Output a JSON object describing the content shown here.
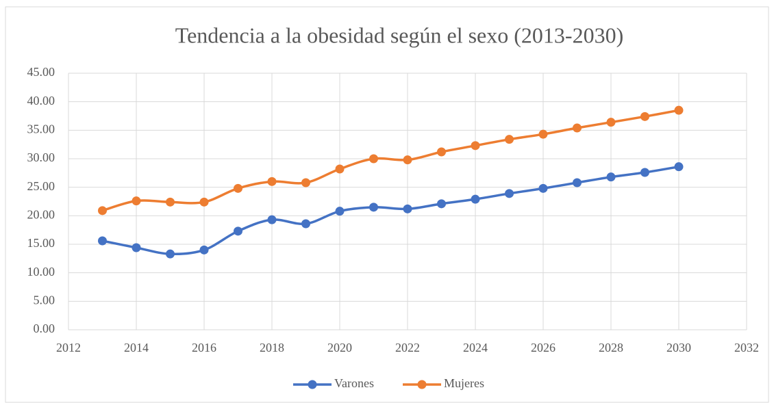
{
  "chart_data": {
    "type": "line",
    "title": "Tendencia a la obesidad según el sexo (2013-2030)",
    "x": [
      2013,
      2014,
      2015,
      2016,
      2017,
      2018,
      2019,
      2020,
      2021,
      2022,
      2023,
      2024,
      2025,
      2026,
      2027,
      2028,
      2029,
      2030
    ],
    "series": [
      {
        "name": "Varones",
        "color": "#4472c4",
        "values": [
          15.6,
          14.4,
          13.3,
          14.0,
          17.3,
          19.3,
          18.6,
          20.8,
          21.5,
          21.2,
          22.1,
          22.9,
          23.9,
          24.8,
          25.8,
          26.8,
          27.6,
          28.6
        ]
      },
      {
        "name": "Mujeres",
        "color": "#ed7d31",
        "values": [
          20.9,
          22.6,
          22.4,
          22.4,
          24.8,
          26.0,
          25.8,
          28.2,
          30.0,
          29.8,
          31.2,
          32.3,
          33.4,
          34.3,
          35.4,
          36.4,
          37.4,
          38.5
        ]
      }
    ],
    "xlim": [
      2012,
      2032
    ],
    "xticks": [
      2012,
      2014,
      2016,
      2018,
      2020,
      2022,
      2024,
      2026,
      2028,
      2030,
      2032
    ],
    "ylim": [
      0,
      45
    ],
    "yticks": [
      {
        "value": 0,
        "label": "0.00"
      },
      {
        "value": 5,
        "label": "5.00"
      },
      {
        "value": 10,
        "label": "10.00"
      },
      {
        "value": 15,
        "label": "15.00"
      },
      {
        "value": 20,
        "label": "20.00"
      },
      {
        "value": 25,
        "label": "25.00"
      },
      {
        "value": 30,
        "label": "30.00"
      },
      {
        "value": 35,
        "label": "35.00"
      },
      {
        "value": 40,
        "label": "40.00"
      },
      {
        "value": 45,
        "label": "45.00"
      }
    ],
    "grid": true,
    "legend": "bottom"
  }
}
